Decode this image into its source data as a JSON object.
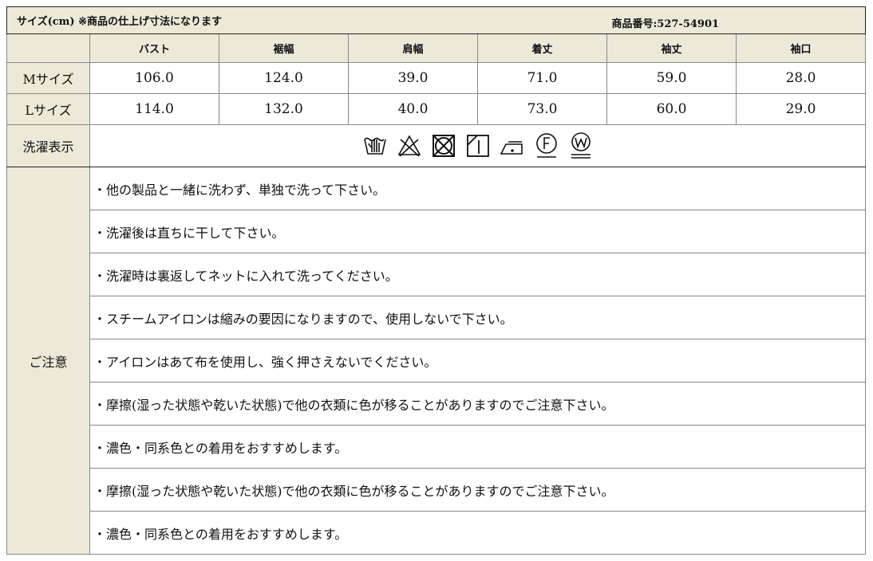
{
  "title": "サイズ(cm) ※商品の仕上げ寸法になります",
  "product_number": "商品番号:527-54901",
  "columns": [
    "バスト",
    "裾幅",
    "肩幅",
    "着丈",
    "袖丈",
    "袖口"
  ],
  "rows": [
    {
      "label": "Mサイズ",
      "values": [
        "106.0",
        "124.0",
        "39.0",
        "71.0",
        "59.0",
        "28.0"
      ]
    },
    {
      "label": "Lサイズ",
      "values": [
        "114.0",
        "132.0",
        "40.0",
        "73.0",
        "60.0",
        "29.0"
      ]
    }
  ],
  "care_label": "洗濯表示",
  "care_icons": [
    "hand-wash-icon",
    "no-bleach-icon",
    "no-tumble-dry-icon",
    "line-dry-shade-icon",
    "iron-low-icon",
    "dry-clean-f-icon",
    "wet-clean-w-icon"
  ],
  "notes_label": "ご注意",
  "notes": [
    "・他の製品と一緒に洗わず、単独で洗って下さい。",
    "・洗濯後は直ちに干して下さい。",
    "・洗濯時は裏返してネットに入れて洗ってください。",
    "・スチームアイロンは縮みの要因になりますので、使用しないで下さい。",
    "・アイロンはあて布を使用し、強く押さえないでください。",
    "・摩擦(湿った状態や乾いた状態)で他の衣類に色が移ることがありますのでご注意下さい。",
    "・濃色・同系色との着用をおすすめします。",
    "・摩擦(湿った状態や乾いた状態)で他の衣類に色が移ることがありますのでご注意下さい。",
    "・濃色・同系色との着用をおすすめします。"
  ],
  "colors": {
    "header_bg": "#ece9d8",
    "border": "#222222"
  }
}
